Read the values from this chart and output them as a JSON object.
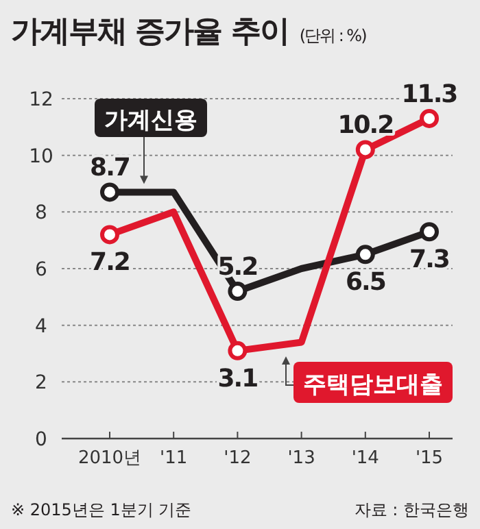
{
  "chart_data": {
    "type": "line",
    "title": "가계부채 증가율 추이",
    "subtitle": "(단위 : %)",
    "categories": [
      "2010년",
      "'11",
      "'12",
      "'13",
      "'14",
      "'15"
    ],
    "series": [
      {
        "name": "가계신용",
        "color": "#231f20",
        "values": [
          8.7,
          8.7,
          5.2,
          6.0,
          6.5,
          7.3
        ],
        "value_labels": [
          "8.7",
          null,
          "5.2",
          null,
          "6.5",
          "7.3"
        ]
      },
      {
        "name": "주택담보대출",
        "color": "#e0182d",
        "values": [
          7.2,
          8.0,
          3.1,
          3.4,
          10.2,
          11.3
        ],
        "value_labels": [
          "7.2",
          null,
          "3.1",
          null,
          "10.2",
          "11.3"
        ]
      }
    ],
    "ylim": [
      0,
      12
    ],
    "yticks": [
      0,
      2,
      4,
      6,
      8,
      10,
      12
    ],
    "grid": "y",
    "marker": "circle",
    "line_style": "solid",
    "annotations": [
      "※ 2015년은 1분기 기준",
      "자료 : 한국은행"
    ]
  }
}
